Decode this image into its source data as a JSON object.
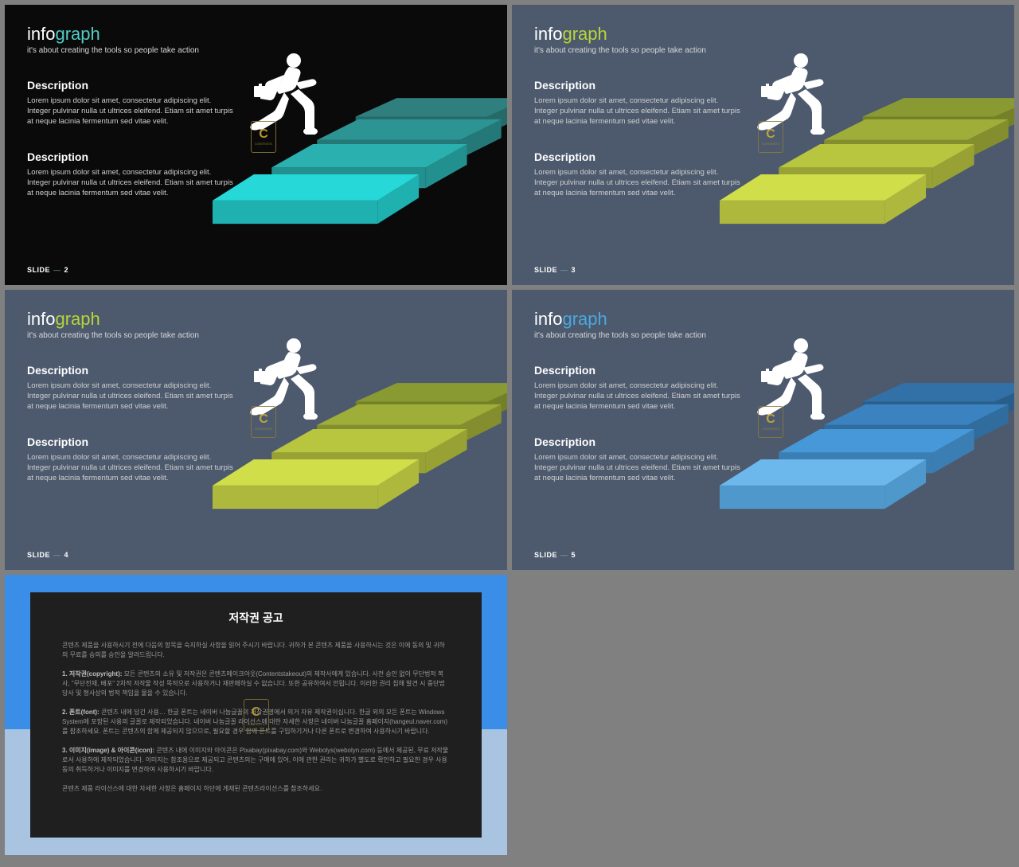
{
  "common": {
    "title_part1": "info",
    "title_part2": "graph",
    "subtitle": "it's about creating the tools so people take action",
    "desc_heading": "Description",
    "desc_text": "Lorem ipsum dolor sit amet, consectetur adipiscing elit. Integer pulvinar nulla ut ultrices eleifend. Etiam sit amet turpis at neque lacinia fermentum sed vitae velit.",
    "slide_label": "SLIDE",
    "slide_sep": "—",
    "watermark_letter": "C",
    "watermark_sub": "CONTENTS"
  },
  "slides": [
    {
      "num": "2",
      "bg": "#0a0a0a",
      "accent": "#4fcdc4",
      "step_colors": [
        "#26d8d8",
        "#2bb0b0",
        "#2d9494",
        "#2f7f7f"
      ],
      "step_sides": [
        "#1fb0b0",
        "#239090",
        "#257878",
        "#276868"
      ]
    },
    {
      "num": "3",
      "bg": "#4d5a6e",
      "accent": "#b8d43a",
      "step_colors": [
        "#d0de4a",
        "#b8c63f",
        "#9eae38",
        "#8a9a32"
      ],
      "step_sides": [
        "#aeb83c",
        "#98a234",
        "#848e2e",
        "#748028"
      ]
    },
    {
      "num": "4",
      "bg": "#4d5a6e",
      "accent": "#b8d43a",
      "step_colors": [
        "#d0de4a",
        "#b8c63f",
        "#9eae38",
        "#8a9a32"
      ],
      "step_sides": [
        "#aeb83c",
        "#98a234",
        "#848e2e",
        "#748028"
      ]
    },
    {
      "num": "5",
      "bg": "#4d5a6e",
      "accent": "#4aa8e0",
      "step_colors": [
        "#6cb8ec",
        "#4698d8",
        "#3a82c0",
        "#3270a8"
      ],
      "step_sides": [
        "#4e98cc",
        "#3a7eb4",
        "#306c9e",
        "#2a5e8a"
      ]
    }
  ],
  "copyright": {
    "bg_top": "#3a8ee8",
    "bg_bottom": "#a8c4e0",
    "title": "저작권 공고",
    "intro": "콘텐츠 제품을 사용하시기 전에 다음의 항목을 숙지하실 사항을 읽어 주시기 바랍니다. 귀하가 본 콘텐츠 제품을 사용하시는 것은 이에 동의 및 귀하의 무료를 승의를 승인을 알려드립니다.",
    "p1_label": "1. 저작권(copyright):",
    "p1_text": "모든 콘텐츠의 소유 및 저작권은 콘텐츠메이크아웃(Contentstakeout)의 제작사에게 있습니다. 사전 승인 없이 무단법적 복사, \"무단전재, 배포\" 2차적 저작물 작성 목적으로 사용하거나 재판매하실 수 없습니다. 또한 공유하여서 안됩니다. 이러한 권리 침해 발견 시 중단법 당사 및 형사상의 법적 책임을 물을 수 있습니다.",
    "p2_label": "2. 폰트(font):",
    "p2_text": "콘텐츠 내에 담긴 사용… 한글 폰트는 네이버 나눔글꼴의 저작권명에서 의거 자유 제작권이십니다. 한글 외의 모든 폰트는 Windows System에 포함된 사용의 글꼴로 제작되었습니다. 네이버 나눔글꼴 라이선스에 대한 자세한 사항은 네이버 나눔글꼴 홈페이지(hangeul.naver.com)를 참조하세요. 폰트는 콘텐츠의 함께 제공되지 않으므로, 필요할 경우 함께 폰트를 구입하기거나 다른 폰트로 변경하여 사용하시기 바랍니다.",
    "p3_label": "3. 이미지(image) & 아이콘(icon):",
    "p3_text": "콘텐츠 내에 이미지와 아이콘은 Pixabay(pixabay.com)와 Webolys(webolyn.com) 등에서 제공된, 무료 저작물로서 사용하에 제작되었습니다. 이미지는 참조용으로 제공되고 콘텐츠의는 구매에 있어, 이에 관한 권리는 귀하가 별도로 확인하고 필요한 경우 사용동의 취득하거나 이미지를 변경하여 사용하시기 바랍니다.",
    "footer": "콘텐츠 제품 라이선스에 대한 자세한 사항은 홈페이지 하단에 게재된 콘텐츠라이선스를 참조하세요."
  }
}
